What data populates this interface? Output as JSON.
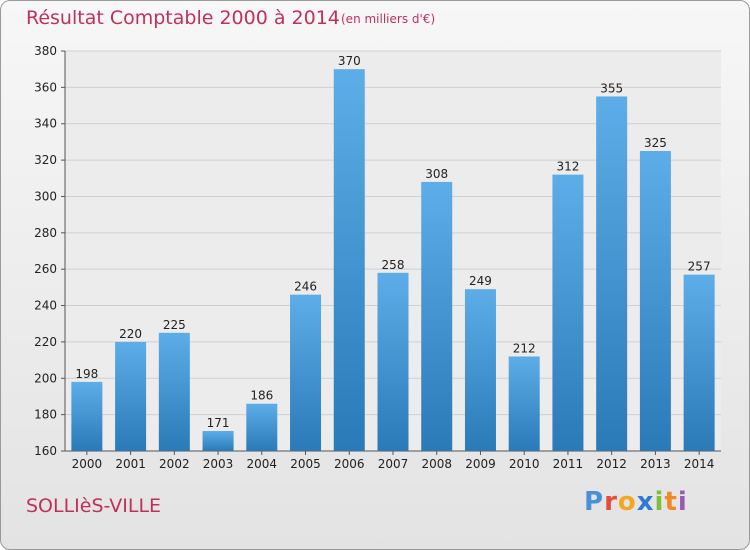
{
  "header": {
    "title": "Résultat Comptable 2000 à 2014",
    "subtitle": "(en milliers d'€)"
  },
  "footer": {
    "commune": "SOLLIèS-VILLE",
    "logo_text": "Proxiti"
  },
  "colors": {
    "bar_light": "#5dade8",
    "bar_dark": "#2a7ab8",
    "accent": "#c0315a",
    "grid": "#d0d0d0"
  },
  "chart_data": {
    "type": "bar",
    "title": "Résultat Comptable 2000 à 2014",
    "subtitle": "(en milliers d'€)",
    "xlabel": "",
    "ylabel": "",
    "categories": [
      "2000",
      "2001",
      "2002",
      "2003",
      "2004",
      "2005",
      "2006",
      "2007",
      "2008",
      "2009",
      "2010",
      "2011",
      "2012",
      "2013",
      "2014"
    ],
    "values": [
      198,
      220,
      225,
      171,
      186,
      246,
      370,
      258,
      308,
      249,
      212,
      312,
      355,
      325,
      257
    ],
    "ylim": [
      160,
      380
    ],
    "yticks": [
      160,
      180,
      200,
      220,
      240,
      260,
      280,
      300,
      320,
      340,
      360,
      380
    ],
    "grid": true,
    "data_labels": true
  }
}
